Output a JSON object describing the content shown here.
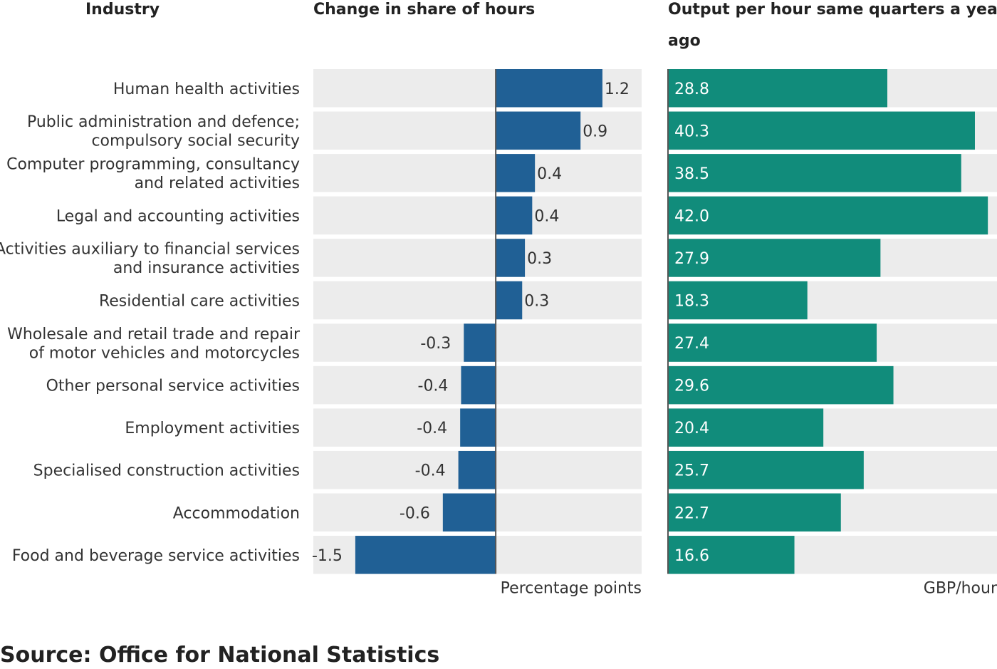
{
  "chart_data": {
    "type": "bar",
    "column_headers": {
      "industry": "Industry",
      "change": "Change in share of hours",
      "output": [
        "Output per hour same quarters a year",
        "ago"
      ]
    },
    "categories": [
      [
        "Human health activities"
      ],
      [
        "Public administration and defence;",
        "compulsory social security"
      ],
      [
        "Computer programming, consultancy",
        "and related activities"
      ],
      [
        "Legal and accounting activities"
      ],
      [
        "Activities auxiliary to financial services",
        "and insurance activities"
      ],
      [
        "Residential care activities"
      ],
      [
        "Wholesale and retail trade and repair",
        "of motor vehicles and motorcycles"
      ],
      [
        "Other personal service activities"
      ],
      [
        "Employment activities"
      ],
      [
        "Specialised construction activities"
      ],
      [
        "Accommodation"
      ],
      [
        "Food and beverage service activities"
      ]
    ],
    "series": [
      {
        "values": [
          1.17,
          0.93,
          0.43,
          0.4,
          0.32,
          0.29,
          -0.35,
          -0.38,
          -0.39,
          -0.41,
          -0.58,
          -1.54
        ],
        "labels": [
          "1.2",
          "0.9",
          "0.4",
          "0.4",
          "0.3",
          "0.3",
          "-0.3",
          "-0.4",
          "-0.4",
          "-0.4",
          "-0.6",
          "-1.5"
        ],
        "xlim": [
          -2.0,
          1.6
        ],
        "axis_label": "Percentage points",
        "color": "#206095"
      },
      {
        "values": [
          28.8,
          40.3,
          38.5,
          42.0,
          27.9,
          18.3,
          27.4,
          29.6,
          20.4,
          25.7,
          22.7,
          16.6
        ],
        "labels": [
          "28.8",
          "40.3",
          "38.5",
          "42.0",
          "27.9",
          "18.3",
          "27.4",
          "29.6",
          "20.4",
          "25.7",
          "22.7",
          "16.6"
        ],
        "xlim": [
          0,
          43.2
        ],
        "axis_label": "GBP/hour",
        "color": "#118C7B"
      }
    ],
    "background_color": "#ECECEC",
    "grid": false
  },
  "source": "Source: Office for National Statistics"
}
